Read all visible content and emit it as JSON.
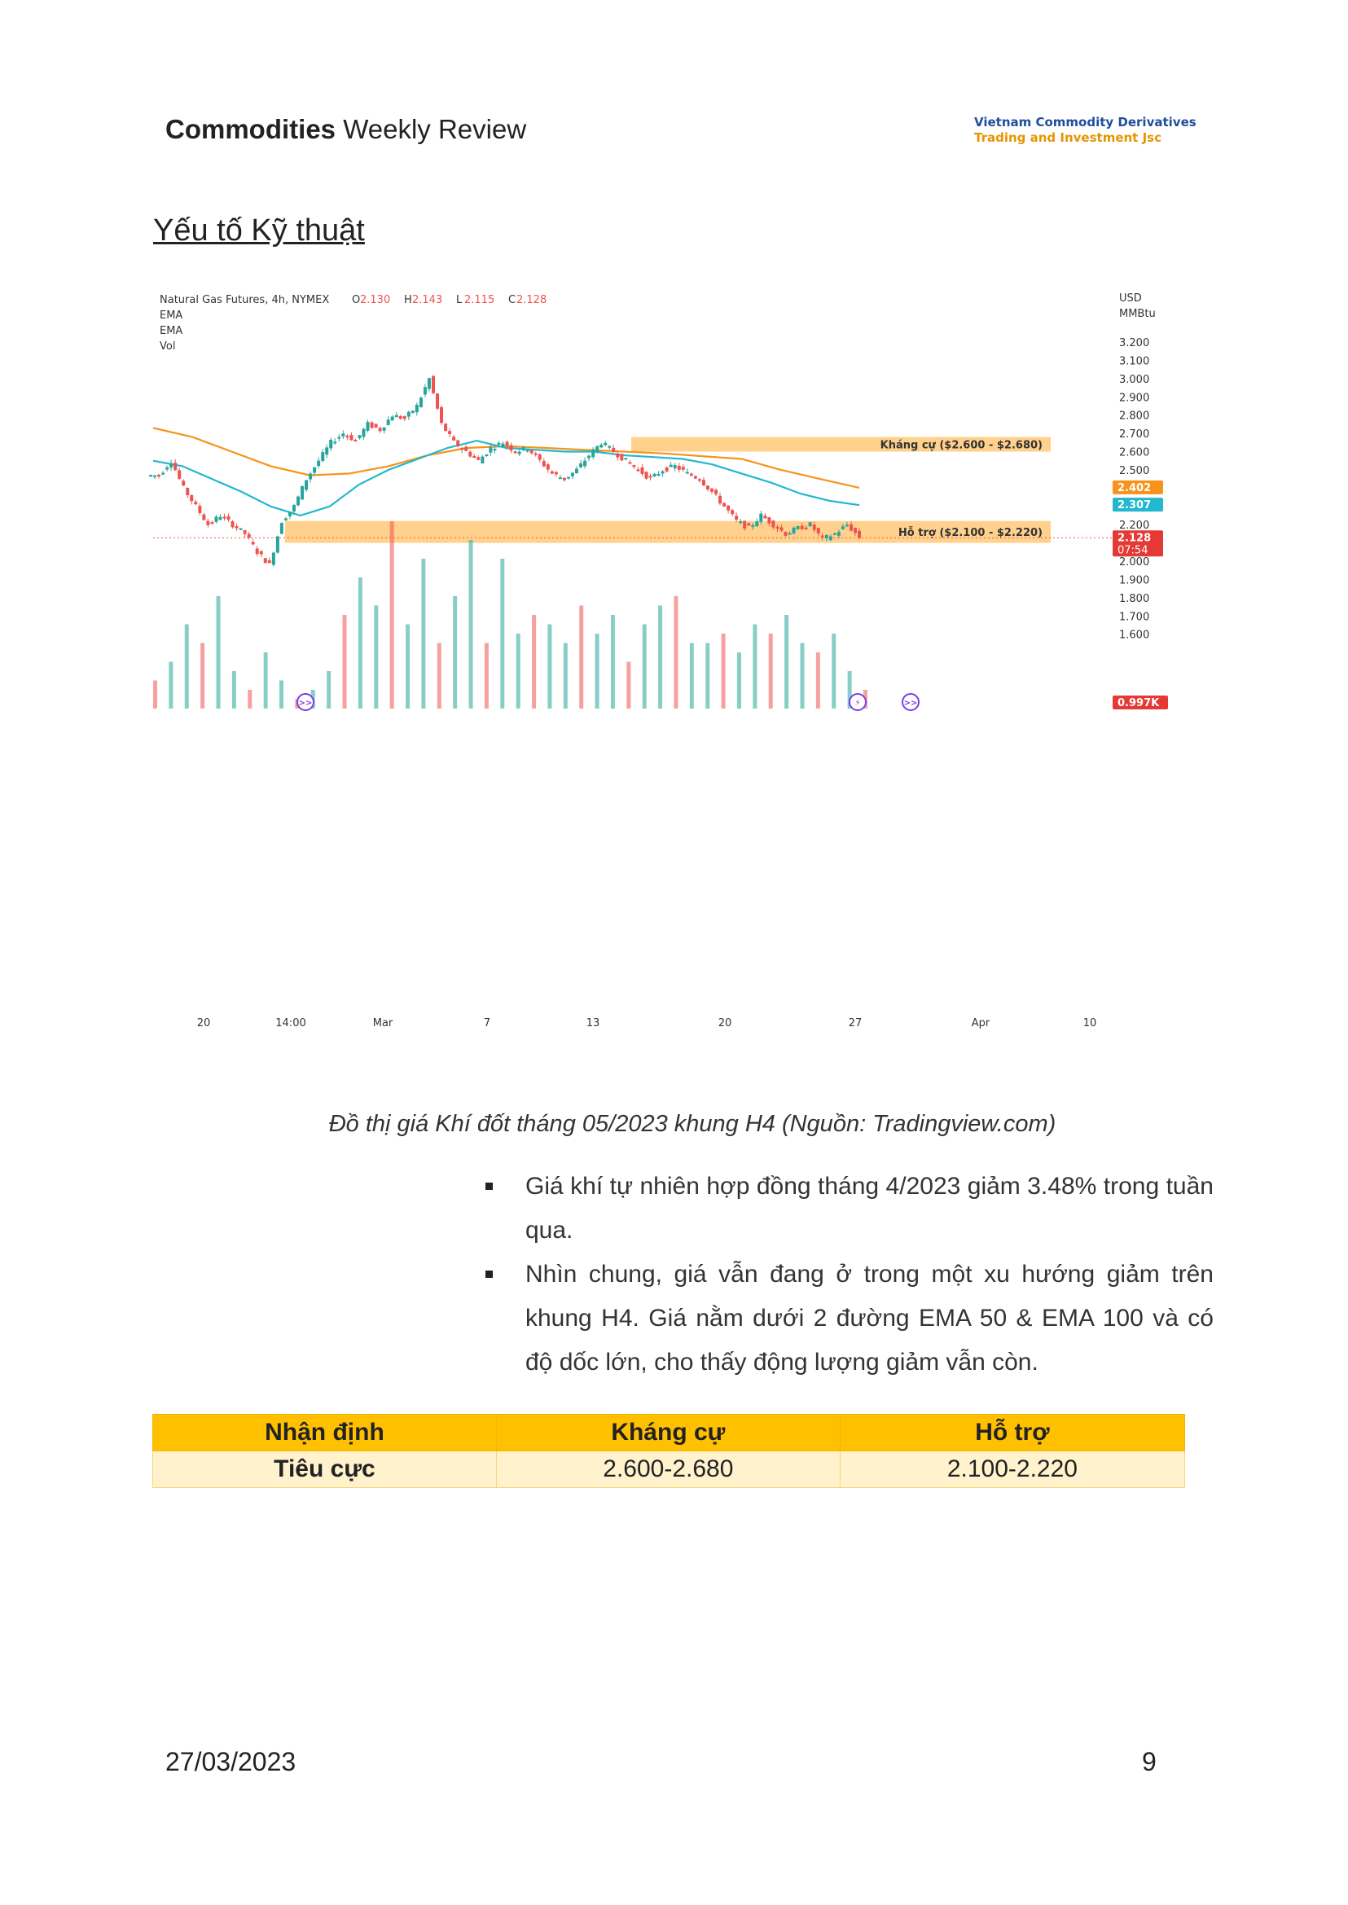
{
  "header": {
    "title_bold": "Commodities",
    "title_rest": " Weekly Review",
    "logo_line1": "Vietnam Commodity Derivatives",
    "logo_line2": "Trading and Investment Jsc"
  },
  "section_title": "Yếu tố Kỹ thuật",
  "chart_data": {
    "type": "candlestick",
    "legend_lines": {
      "instrument": "Natural Gas Futures, 4h, NYMEX",
      "ohlc": [
        {
          "label": "O",
          "value": "2.130"
        },
        {
          "label": "H",
          "value": "2.143"
        },
        {
          "label": "L",
          "value": "2.115"
        },
        {
          "label": "C",
          "value": "2.128"
        }
      ],
      "indicators": [
        "EMA",
        "EMA",
        "Vol"
      ]
    },
    "price_axis": {
      "unit_line1": "USD",
      "unit_line2": "MMBtu",
      "ticks": [
        3.2,
        3.1,
        3.0,
        2.9,
        2.8,
        2.7,
        2.6,
        2.5,
        2.2,
        2.0,
        1.9,
        1.8,
        1.7,
        1.6
      ],
      "ylim": [
        1.49,
        3.28
      ]
    },
    "x_ticks": [
      "20",
      "14:00",
      "Mar",
      "7",
      "13",
      "20",
      "27",
      "Apr",
      "10"
    ],
    "price_badges": [
      {
        "text": "2.402",
        "value": 2.402,
        "color": "#f7931a"
      },
      {
        "text": "2.307",
        "value": 2.307,
        "color": "#22b8cf"
      },
      {
        "text": "2.128",
        "value": 2.128,
        "color": "#e53935",
        "extra": "07:54"
      }
    ],
    "volume_badge": {
      "text": "0.997K",
      "color": "#e53935"
    },
    "zones": [
      {
        "label": "Kháng cự ($2.600 - $2.680)",
        "low": 2.6,
        "high": 2.68
      },
      {
        "label": "Hỗ trợ ($2.100 - $2.220)",
        "low": 2.1,
        "high": 2.22
      }
    ],
    "close_path": [
      2.47,
      2.55,
      2.4,
      2.3,
      2.2,
      2.25,
      2.2,
      2.15,
      2.05,
      1.98,
      2.22,
      2.3,
      2.45,
      2.55,
      2.65,
      2.7,
      2.66,
      2.75,
      2.72,
      2.8,
      2.78,
      2.85,
      3.0,
      2.75,
      2.65,
      2.6,
      2.55,
      2.62,
      2.65,
      2.6,
      2.62,
      2.55,
      2.48,
      2.45,
      2.5,
      2.58,
      2.65,
      2.6,
      2.55,
      2.5,
      2.45,
      2.5,
      2.52,
      2.48,
      2.45,
      2.38,
      2.3,
      2.22,
      2.18,
      2.25,
      2.2,
      2.15,
      2.18,
      2.2,
      2.12,
      2.15,
      2.2,
      2.13
    ],
    "ema_fast": [
      2.55,
      2.52,
      2.45,
      2.38,
      2.3,
      2.25,
      2.3,
      2.42,
      2.5,
      2.56,
      2.62,
      2.66,
      2.62,
      2.61,
      2.6,
      2.6,
      2.58,
      2.57,
      2.56,
      2.53,
      2.48,
      2.43,
      2.37,
      2.33,
      2.307
    ],
    "ema_slow": [
      2.73,
      2.68,
      2.6,
      2.52,
      2.47,
      2.48,
      2.52,
      2.58,
      2.62,
      2.63,
      2.62,
      2.61,
      2.6,
      2.59,
      2.575,
      2.56,
      2.5,
      2.45,
      2.402
    ],
    "volume": [
      0.15,
      0.25,
      0.45,
      0.35,
      0.6,
      0.2,
      0.1,
      0.3,
      0.15,
      0.05,
      0.1,
      0.2,
      0.5,
      0.7,
      0.55,
      1.0,
      0.45,
      0.8,
      0.35,
      0.6,
      0.9,
      0.35,
      0.8,
      0.4,
      0.5,
      0.45,
      0.35,
      0.55,
      0.4,
      0.5,
      0.25,
      0.45,
      0.55,
      0.6,
      0.35,
      0.35,
      0.4,
      0.3,
      0.45,
      0.4,
      0.5,
      0.35,
      0.3,
      0.4,
      0.2,
      0.1
    ]
  },
  "caption": "Đồ thị giá Khí đốt tháng 05/2023 khung H4 (Nguồn: Tradingview.com)",
  "bullets": [
    "Giá khí tự nhiên hợp đồng tháng 4/2023 giảm 3.48% trong tuần qua.",
    "Nhìn chung, giá vẫn đang ở trong một xu hướng giảm trên khung H4. Giá nằm dưới 2 đường EMA 50 & EMA 100 và có độ dốc lớn, cho thấy động lượng giảm vẫn còn."
  ],
  "summary_table": {
    "headers": [
      "Nhận định",
      "Kháng cự",
      "Hỗ trợ"
    ],
    "row": [
      "Tiêu cực",
      "2.600-2.680",
      "2.100-2.220"
    ]
  },
  "colors": {
    "up": "#26a69a",
    "down": "#ef5350",
    "zone": "#ffcc80",
    "ema_fast": "#22b8cf",
    "ema_slow": "#f7931a"
  },
  "footer": {
    "date": "27/03/2023",
    "page": "9"
  }
}
